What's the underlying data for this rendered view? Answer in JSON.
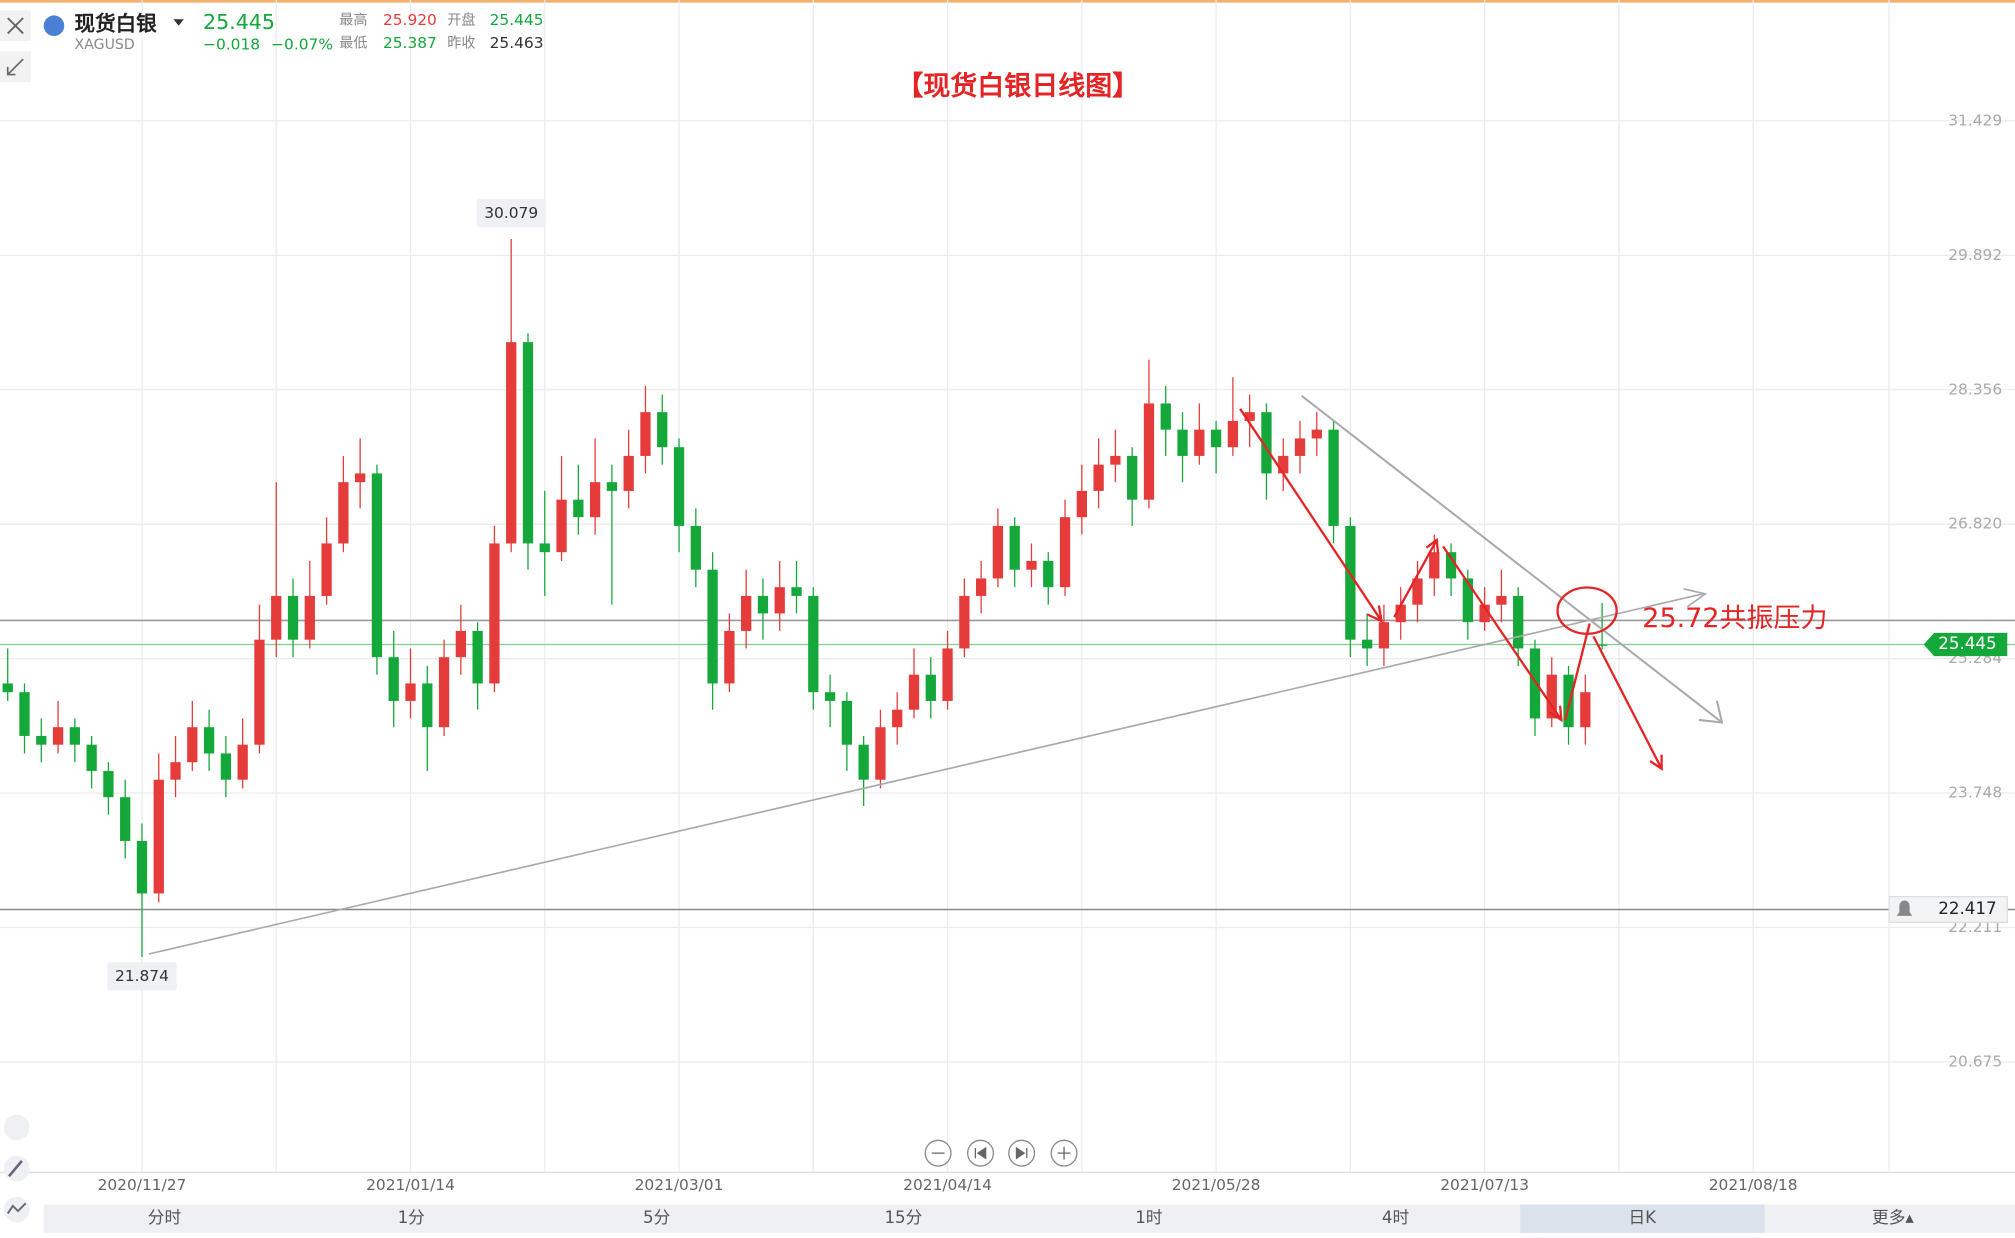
{
  "quote": {
    "name": "现货白银",
    "symbol": "XAGUSD",
    "price": "25.445",
    "change": "−0.018",
    "change_pct": "−0.07%",
    "stats": [
      {
        "label": "最高",
        "value": "25.920"
      },
      {
        "label": "开盘",
        "value": "25.445"
      },
      {
        "label": "最低",
        "value": "25.387"
      },
      {
        "label": "昨收",
        "value": "25.463"
      }
    ]
  },
  "tabs": [
    "分时",
    "1分",
    "5分",
    "15分",
    "1时",
    "4时",
    "日K",
    "更多▴"
  ],
  "chart_data": {
    "type": "candlestick",
    "title": "【现货白银日线图】",
    "up_color": "#e63b3b",
    "down_color": "#14a83b",
    "grid": true,
    "ylim": [
      19.412,
      32.81
    ],
    "yticks": [
      31.429,
      29.892,
      28.356,
      {
        "value": 26.82,
        "label": "26.820"
      },
      25.284,
      23.748,
      22.211,
      20.675
    ],
    "current_price": 25.445,
    "alert_level": 22.417,
    "resistance_level": 25.72,
    "annotation": "25.72共振压力",
    "categories": [
      null,
      null,
      null,
      null,
      null,
      null,
      null,
      null,
      "2020/11/27",
      null,
      null,
      null,
      null,
      null,
      null,
      null,
      null,
      null,
      null,
      null,
      null,
      null,
      null,
      null,
      "2021/01/14",
      null,
      null,
      null,
      null,
      null,
      null,
      null,
      null,
      null,
      null,
      null,
      null,
      null,
      null,
      null,
      "2021/03/01",
      null,
      null,
      null,
      null,
      null,
      null,
      null,
      null,
      null,
      null,
      null,
      null,
      null,
      null,
      null,
      "2021/04/14",
      null,
      null,
      null,
      null,
      null,
      null,
      null,
      null,
      null,
      null,
      null,
      null,
      null,
      null,
      null,
      "2021/05/28",
      null,
      null,
      null,
      null,
      null,
      null,
      null,
      null,
      null,
      null,
      null,
      null,
      null,
      null,
      null,
      "2021/07/13",
      null,
      null,
      null,
      null,
      null,
      null,
      null,
      null,
      null,
      null,
      null,
      null,
      null,
      null,
      null,
      "2021/08/18",
      null,
      null,
      null,
      null,
      null,
      null,
      null
    ],
    "ohlc": [
      [
        25.0,
        25.4,
        24.8,
        24.9
      ],
      [
        24.9,
        25.0,
        24.2,
        24.4
      ],
      [
        24.4,
        24.6,
        24.1,
        24.3
      ],
      [
        24.3,
        24.8,
        24.2,
        24.5
      ],
      [
        24.5,
        24.6,
        24.1,
        24.3
      ],
      [
        24.3,
        24.4,
        23.8,
        24.0
      ],
      [
        24.0,
        24.1,
        23.5,
        23.7
      ],
      [
        23.7,
        23.9,
        23.0,
        23.2
      ],
      [
        23.2,
        23.4,
        21.874,
        22.6
      ],
      [
        22.6,
        24.2,
        22.5,
        23.9
      ],
      [
        23.9,
        24.4,
        23.7,
        24.1
      ],
      [
        24.1,
        24.8,
        24.0,
        24.5
      ],
      [
        24.5,
        24.7,
        24.0,
        24.2
      ],
      [
        24.2,
        24.4,
        23.7,
        23.9
      ],
      [
        23.9,
        24.6,
        23.8,
        24.3
      ],
      [
        24.3,
        25.9,
        24.2,
        25.5
      ],
      [
        25.5,
        27.3,
        25.3,
        26.0
      ],
      [
        26.0,
        26.2,
        25.3,
        25.5
      ],
      [
        25.5,
        26.4,
        25.4,
        26.0
      ],
      [
        26.0,
        26.9,
        25.9,
        26.6
      ],
      [
        26.6,
        27.6,
        26.5,
        27.3
      ],
      [
        27.3,
        27.8,
        27.0,
        27.4
      ],
      [
        27.4,
        27.5,
        25.1,
        25.3
      ],
      [
        25.3,
        25.6,
        24.5,
        24.8
      ],
      [
        24.8,
        25.4,
        24.6,
        25.0
      ],
      [
        25.0,
        25.2,
        24.0,
        24.5
      ],
      [
        24.5,
        25.5,
        24.4,
        25.3
      ],
      [
        25.3,
        25.9,
        25.1,
        25.6
      ],
      [
        25.6,
        25.7,
        24.7,
        25.0
      ],
      [
        25.0,
        26.8,
        24.9,
        26.6
      ],
      [
        26.6,
        30.079,
        26.5,
        28.9
      ],
      [
        28.9,
        29.0,
        26.3,
        26.6
      ],
      [
        26.6,
        27.2,
        26.0,
        26.5
      ],
      [
        26.5,
        27.6,
        26.4,
        27.1
      ],
      [
        27.1,
        27.5,
        26.7,
        26.9
      ],
      [
        26.9,
        27.8,
        26.7,
        27.3
      ],
      [
        27.3,
        27.5,
        25.9,
        27.2
      ],
      [
        27.2,
        27.9,
        27.0,
        27.6
      ],
      [
        27.6,
        28.4,
        27.4,
        28.1
      ],
      [
        28.1,
        28.3,
        27.5,
        27.7
      ],
      [
        27.7,
        27.8,
        26.5,
        26.8
      ],
      [
        26.8,
        27.0,
        26.1,
        26.3
      ],
      [
        26.3,
        26.5,
        24.7,
        25.0
      ],
      [
        25.0,
        25.8,
        24.9,
        25.6
      ],
      [
        25.6,
        26.3,
        25.4,
        26.0
      ],
      [
        26.0,
        26.2,
        25.5,
        25.8
      ],
      [
        25.8,
        26.4,
        25.6,
        26.1
      ],
      [
        26.1,
        26.4,
        25.8,
        26.0
      ],
      [
        26.0,
        26.1,
        24.7,
        24.9
      ],
      [
        24.9,
        25.1,
        24.5,
        24.8
      ],
      [
        24.8,
        24.9,
        24.0,
        24.3
      ],
      [
        24.3,
        24.4,
        23.6,
        23.9
      ],
      [
        23.9,
        24.7,
        23.8,
        24.5
      ],
      [
        24.5,
        24.9,
        24.3,
        24.7
      ],
      [
        24.7,
        25.4,
        24.6,
        25.1
      ],
      [
        25.1,
        25.3,
        24.6,
        24.8
      ],
      [
        24.8,
        25.6,
        24.7,
        25.4
      ],
      [
        25.4,
        26.2,
        25.3,
        26.0
      ],
      [
        26.0,
        26.4,
        25.8,
        26.2
      ],
      [
        26.2,
        27.0,
        26.1,
        26.8
      ],
      [
        26.8,
        26.9,
        26.1,
        26.3
      ],
      [
        26.3,
        26.6,
        26.1,
        26.4
      ],
      [
        26.4,
        26.5,
        25.9,
        26.1
      ],
      [
        26.1,
        27.1,
        26.0,
        26.9
      ],
      [
        26.9,
        27.5,
        26.7,
        27.2
      ],
      [
        27.2,
        27.8,
        27.0,
        27.5
      ],
      [
        27.5,
        27.9,
        27.3,
        27.6
      ],
      [
        27.6,
        27.7,
        26.8,
        27.1
      ],
      [
        27.1,
        28.7,
        27.0,
        28.2
      ],
      [
        28.2,
        28.4,
        27.6,
        27.9
      ],
      [
        27.9,
        28.1,
        27.3,
        27.6
      ],
      [
        27.6,
        28.2,
        27.5,
        27.9
      ],
      [
        27.9,
        28.0,
        27.4,
        27.7
      ],
      [
        27.7,
        28.5,
        27.6,
        28.0
      ],
      [
        28.0,
        28.3,
        27.7,
        28.1
      ],
      [
        28.1,
        28.2,
        27.1,
        27.4
      ],
      [
        27.4,
        27.8,
        27.2,
        27.6
      ],
      [
        27.6,
        28.0,
        27.4,
        27.8
      ],
      [
        27.8,
        28.1,
        27.6,
        27.9
      ],
      [
        27.9,
        28.0,
        26.6,
        26.8
      ],
      [
        26.8,
        26.9,
        25.3,
        25.5
      ],
      [
        25.5,
        25.8,
        25.2,
        25.4
      ],
      [
        25.4,
        25.9,
        25.2,
        25.7
      ],
      [
        25.7,
        26.1,
        25.5,
        25.9
      ],
      [
        25.9,
        26.4,
        25.7,
        26.2
      ],
      [
        26.2,
        26.7,
        26.0,
        26.5
      ],
      [
        26.5,
        26.6,
        26.0,
        26.2
      ],
      [
        26.2,
        26.3,
        25.5,
        25.7
      ],
      [
        25.7,
        26.1,
        25.6,
        25.9
      ],
      [
        25.9,
        26.3,
        25.7,
        26.0
      ],
      [
        26.0,
        26.1,
        25.2,
        25.4
      ],
      [
        25.4,
        25.5,
        24.4,
        24.6
      ],
      [
        24.6,
        25.3,
        24.5,
        25.1
      ],
      [
        25.1,
        25.2,
        24.3,
        24.5
      ],
      [
        24.5,
        25.1,
        24.3,
        24.9
      ],
      [
        25.445,
        25.92,
        25.387,
        25.445
      ],
      null,
      null,
      null,
      null,
      null,
      null,
      null,
      null,
      null,
      null,
      null,
      null,
      null,
      null,
      null,
      null
    ]
  }
}
